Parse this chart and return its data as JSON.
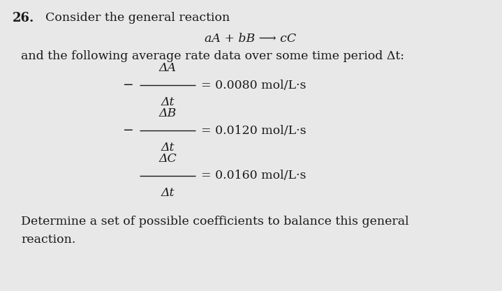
{
  "background_color": "#e8e8e8",
  "text_color": "#1a1a1a",
  "question_number": "26.",
  "line1": "Consider the general reaction",
  "reaction": "aA + bB ⟶ cC",
  "line2": "and the following average rate data over some time period Δt:",
  "frac1_num": "ΔA",
  "frac1_den": "Δt",
  "frac1_prefix": "−",
  "frac1_val": "= 0.0080 mol/L·s",
  "frac2_num": "ΔB",
  "frac2_den": "Δt",
  "frac2_prefix": "−",
  "frac2_val": "= 0.0120 mol/L·s",
  "frac3_num": "ΔC",
  "frac3_den": "Δt",
  "frac3_prefix": "",
  "frac3_val": "= 0.0160 mol/L·s",
  "line3": "Determine a set of possible coefficients to balance this general",
  "line4": "reaction.",
  "fig_width": 7.19,
  "fig_height": 4.17,
  "dpi": 100
}
